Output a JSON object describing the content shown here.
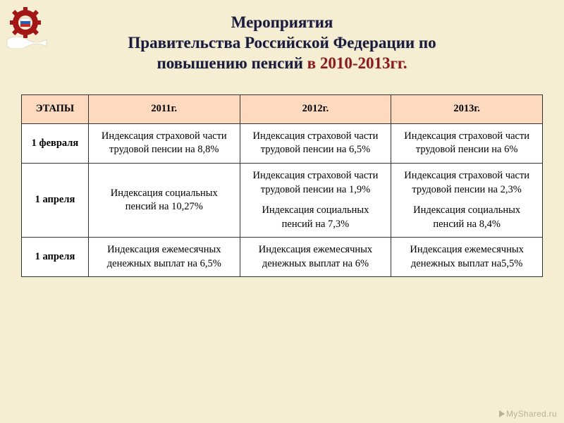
{
  "title_line1": "Мероприятия",
  "title_line2": "Правительства Российской Федерации по",
  "title_line3_prefix": "повышению пенсий",
  "title_line3_accent": " в 2010-2013гг.",
  "logo": {
    "wave_color": "#ffffff",
    "flag_white": "#ffffff",
    "flag_blue": "#2a5fb0",
    "flag_red": "#c62828",
    "gear_color": "#a31616"
  },
  "table": {
    "header_bg": "#fdd9c0",
    "cols": [
      "ЭТАПЫ",
      "2011г.",
      "2012г.",
      "2013г."
    ],
    "col_widths": [
      "95px",
      "215px",
      "215px",
      "215px"
    ],
    "rows": [
      {
        "stage": "1 февраля",
        "cells": [
          [
            "Индексация страховой части трудовой пенсии на 8,8%"
          ],
          [
            "Индексация страховой части трудовой пенсии на 6,5%"
          ],
          [
            "Индексация страховой части трудовой пенсии на 6%"
          ]
        ]
      },
      {
        "stage": "1 апреля",
        "cells": [
          [
            "Индексация социальных пенсий на 10,27%"
          ],
          [
            "Индексация страховой части трудовой пенсии на 1,9%",
            "Индексация социальных пенсий на 7,3%"
          ],
          [
            "Индексация страховой части трудовой пенсии на 2,3%",
            "Индексация социальных пенсий на 8,4%"
          ]
        ]
      },
      {
        "stage": "1 апреля",
        "cells": [
          [
            "Индексация ежемесячных денежных выплат на 6,5%"
          ],
          [
            "Индексация ежемесячных денежных выплат на 6%"
          ],
          [
            "Индексация ежемесячных денежных выплат на5,5%"
          ]
        ]
      }
    ]
  },
  "watermark": "MyShared.ru"
}
